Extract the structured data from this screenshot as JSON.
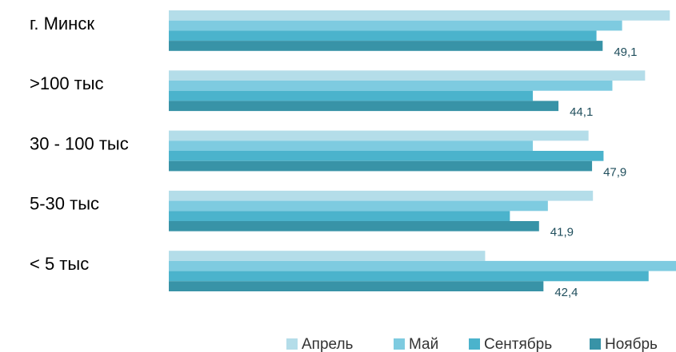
{
  "chart_data": {
    "type": "bar",
    "orientation": "horizontal",
    "categories": [
      "г. Минск",
      ">100 тыс",
      "30 - 100 тыс",
      "5-30 тыс",
      "< 5 тыс"
    ],
    "series": [
      {
        "name": "Апрель",
        "color": "#b4dde9",
        "values": [
          56.7,
          53.9,
          47.5,
          48.0,
          35.8
        ]
      },
      {
        "name": "Май",
        "color": "#7ecbe0",
        "values": [
          51.3,
          50.2,
          41.2,
          42.9,
          57.4
        ]
      },
      {
        "name": "Сентябрь",
        "color": "#4bb3cc",
        "values": [
          48.4,
          41.2,
          49.2,
          38.6,
          54.3
        ]
      },
      {
        "name": "Ноябрь",
        "color": "#3893a7",
        "values": [
          49.1,
          44.1,
          47.9,
          41.9,
          42.4
        ],
        "value_labels": [
          "49,1",
          "44,1",
          "47,9",
          "41,9",
          "42,4"
        ]
      }
    ],
    "legend": "bottom"
  }
}
